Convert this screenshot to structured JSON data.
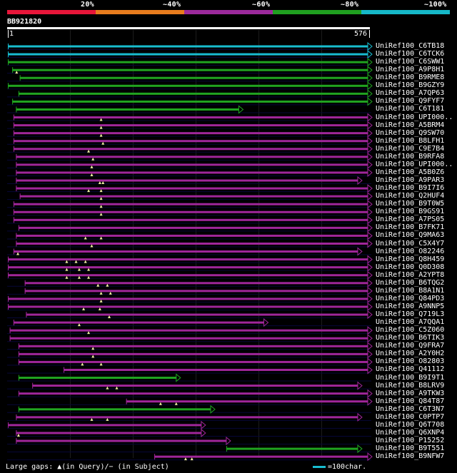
{
  "legend": {
    "labels": [
      "20%",
      "~40%",
      "~60%",
      "~80%",
      "~100%"
    ],
    "colors": [
      "#e8163a",
      "#e87c1e",
      "#9c2a9c",
      "#20a020",
      "#16b8c8"
    ]
  },
  "query": {
    "id": "BB921820",
    "start": "1",
    "end": "576",
    "length": 576
  },
  "hits": [
    {
      "label": "UniRef100_C6TB18",
      "start": 1,
      "end": 576,
      "color": "cyan",
      "arrow": true,
      "gaps": []
    },
    {
      "label": "UniRef100_C6TCK6",
      "start": 1,
      "end": 576,
      "color": "cyan",
      "arrow": true,
      "gaps": []
    },
    {
      "label": "UniRef100_C6SWW1",
      "start": 1,
      "end": 576,
      "color": "green",
      "arrow": true,
      "gaps": []
    },
    {
      "label": "UniRef100_A9P8H1",
      "start": 8,
      "end": 576,
      "color": "green",
      "arrow": true,
      "gaps": [
        15
      ]
    },
    {
      "label": "UniRef100_B9RME8",
      "start": 20,
      "end": 576,
      "color": "green",
      "arrow": true,
      "gaps": []
    },
    {
      "label": "UniRef100_B9GZY9",
      "start": 1,
      "end": 576,
      "color": "green",
      "arrow": true,
      "gaps": []
    },
    {
      "label": "UniRef100_A7QP63",
      "start": 18,
      "end": 576,
      "color": "green",
      "arrow": true,
      "gaps": []
    },
    {
      "label": "UniRef100_Q9FYF7",
      "start": 8,
      "end": 576,
      "color": "green",
      "arrow": true,
      "gaps": []
    },
    {
      "label": "UniRef100_C6T181",
      "start": 14,
      "end": 370,
      "color": "green",
      "arrow": true,
      "gaps": []
    },
    {
      "label": "UniRef100_UPI000..",
      "start": 10,
      "end": 576,
      "color": "magenta",
      "arrow": true,
      "gaps": [
        150
      ]
    },
    {
      "label": "UniRef100_A5BRM4",
      "start": 10,
      "end": 576,
      "color": "magenta",
      "arrow": true,
      "gaps": [
        150
      ]
    },
    {
      "label": "UniRef100_Q9SW70",
      "start": 10,
      "end": 576,
      "color": "magenta",
      "arrow": true,
      "gaps": [
        150
      ]
    },
    {
      "label": "UniRef100_B8LFH1",
      "start": 10,
      "end": 576,
      "color": "magenta",
      "arrow": true,
      "gaps": [
        153
      ]
    },
    {
      "label": "UniRef100_C9E7B4",
      "start": 10,
      "end": 576,
      "color": "magenta",
      "arrow": true,
      "gaps": [
        130
      ]
    },
    {
      "label": "UniRef100_B9RFA8",
      "start": 14,
      "end": 576,
      "color": "magenta",
      "arrow": true,
      "gaps": [
        137
      ]
    },
    {
      "label": "UniRef100_UPI000..",
      "start": 14,
      "end": 576,
      "color": "magenta",
      "arrow": true,
      "gaps": [
        135
      ]
    },
    {
      "label": "UniRef100_A5B0Z6",
      "start": 14,
      "end": 576,
      "color": "magenta",
      "arrow": true,
      "gaps": [
        135
      ]
    },
    {
      "label": "UniRef100_A9PAR3",
      "start": 14,
      "end": 560,
      "color": "magenta",
      "arrow": true,
      "gaps": [
        148,
        153
      ]
    },
    {
      "label": "UniRef100_B9I7I6",
      "start": 14,
      "end": 576,
      "color": "magenta",
      "arrow": true,
      "gaps": [
        130,
        150
      ]
    },
    {
      "label": "UniRef100_Q2HUF4",
      "start": 20,
      "end": 576,
      "color": "magenta",
      "arrow": true,
      "gaps": [
        150
      ]
    },
    {
      "label": "UniRef100_B9T0W5",
      "start": 10,
      "end": 576,
      "color": "magenta",
      "arrow": true,
      "gaps": [
        150
      ]
    },
    {
      "label": "UniRef100_B9GS91",
      "start": 10,
      "end": 576,
      "color": "magenta",
      "arrow": true,
      "gaps": [
        150
      ]
    },
    {
      "label": "UniRef100_A7PS05",
      "start": 10,
      "end": 576,
      "color": "magenta",
      "arrow": true,
      "gaps": []
    },
    {
      "label": "UniRef100_B7FK71",
      "start": 18,
      "end": 576,
      "color": "magenta",
      "arrow": true,
      "gaps": []
    },
    {
      "label": "UniRef100_Q9MA63",
      "start": 14,
      "end": 576,
      "color": "magenta",
      "arrow": true,
      "gaps": [
        125,
        150
      ]
    },
    {
      "label": "UniRef100_C5X4Y7",
      "start": 14,
      "end": 576,
      "color": "magenta",
      "arrow": true,
      "gaps": [
        135
      ]
    },
    {
      "label": "UniRef100_O82246",
      "start": 10,
      "end": 560,
      "color": "magenta",
      "arrow": true,
      "gaps": [
        17
      ]
    },
    {
      "label": "UniRef100_Q8H459",
      "start": 1,
      "end": 576,
      "color": "magenta",
      "arrow": true,
      "gaps": [
        95,
        110,
        125
      ]
    },
    {
      "label": "UniRef100_Q0D308",
      "start": 1,
      "end": 576,
      "color": "magenta",
      "arrow": true,
      "gaps": [
        95,
        115,
        130
      ]
    },
    {
      "label": "UniRef100_A2YPT8",
      "start": 1,
      "end": 576,
      "color": "magenta",
      "arrow": true,
      "gaps": [
        95,
        115,
        130
      ]
    },
    {
      "label": "UniRef100_B6TQG2",
      "start": 28,
      "end": 576,
      "color": "magenta",
      "arrow": true,
      "gaps": [
        145,
        160
      ]
    },
    {
      "label": "UniRef100_B8A1N1",
      "start": 28,
      "end": 576,
      "color": "magenta",
      "arrow": true,
      "gaps": [
        150,
        165
      ]
    },
    {
      "label": "UniRef100_Q84PD3",
      "start": 1,
      "end": 576,
      "color": "magenta",
      "arrow": true,
      "gaps": [
        150
      ]
    },
    {
      "label": "UniRef100_A9NNP5",
      "start": 1,
      "end": 576,
      "color": "magenta",
      "arrow": true,
      "gaps": [
        122,
        148
      ]
    },
    {
      "label": "UniRef100_Q719L3",
      "start": 30,
      "end": 576,
      "color": "magenta",
      "arrow": true,
      "gaps": [
        163
      ]
    },
    {
      "label": "UniRef100_A7QQA1",
      "start": 10,
      "end": 410,
      "color": "magenta",
      "arrow": true,
      "gaps": [
        115
      ]
    },
    {
      "label": "UniRef100_C5Z060",
      "start": 4,
      "end": 576,
      "color": "magenta",
      "arrow": true,
      "gaps": [
        130
      ]
    },
    {
      "label": "UniRef100_B6TIK3",
      "start": 4,
      "end": 576,
      "color": "magenta",
      "arrow": true,
      "gaps": []
    },
    {
      "label": "UniRef100_Q9FRA7",
      "start": 18,
      "end": 576,
      "color": "magenta",
      "arrow": true,
      "gaps": [
        137
      ]
    },
    {
      "label": "UniRef100_A2Y0H2",
      "start": 18,
      "end": 576,
      "color": "magenta",
      "arrow": true,
      "gaps": [
        137
      ]
    },
    {
      "label": "UniRef100_O82803",
      "start": 18,
      "end": 576,
      "color": "magenta",
      "arrow": true,
      "gaps": [
        120,
        150
      ]
    },
    {
      "label": "UniRef100_Q41112",
      "start": 90,
      "end": 576,
      "color": "magenta",
      "arrow": true,
      "gaps": []
    },
    {
      "label": "UniRef100_B9I9T1",
      "start": 18,
      "end": 270,
      "color": "green",
      "arrow": true,
      "gaps": []
    },
    {
      "label": "UniRef100_B8LRV9",
      "start": 40,
      "end": 560,
      "color": "magenta",
      "arrow": true,
      "gaps": [
        160,
        175
      ]
    },
    {
      "label": "UniRef100_A9TKW3",
      "start": 18,
      "end": 576,
      "color": "magenta",
      "arrow": true,
      "gaps": []
    },
    {
      "label": "UniRef100_Q84T87",
      "start": 190,
      "end": 576,
      "color": "magenta",
      "arrow": true,
      "gaps": [
        245,
        270
      ]
    },
    {
      "label": "UniRef100_C6T3N7",
      "start": 18,
      "end": 325,
      "color": "green",
      "arrow": true,
      "gaps": []
    },
    {
      "label": "UniRef100_C0PTP7",
      "start": 14,
      "end": 560,
      "color": "magenta",
      "arrow": true,
      "gaps": [
        135,
        160
      ]
    },
    {
      "label": "UniRef100_Q6T708",
      "start": 1,
      "end": 310,
      "color": "magenta",
      "arrow": true,
      "gaps": []
    },
    {
      "label": "UniRef100_Q6XNP4",
      "start": 14,
      "end": 310,
      "color": "magenta",
      "arrow": true,
      "gaps": [
        18
      ]
    },
    {
      "label": "UniRef100_P15252",
      "start": 14,
      "end": 350,
      "color": "magenta",
      "arrow": true,
      "gaps": []
    },
    {
      "label": "UniRef100_B9T551",
      "start": 350,
      "end": 560,
      "color": "green",
      "arrow": true,
      "gaps": []
    },
    {
      "label": "UniRef100_B9NFW7",
      "start": 235,
      "end": 576,
      "color": "magenta",
      "arrow": true,
      "gaps": [
        285,
        295
      ]
    }
  ],
  "footer": {
    "legend_text": "Large gaps: ▲(in Query)/− (in Subject)",
    "scale_label": "=100char.",
    "scale_chars": 100
  },
  "colors": {
    "cyan": "#18bcd0",
    "green": "#20a420",
    "magenta": "#a0269a",
    "gap": "#f0f0a0",
    "background": "#000000"
  }
}
